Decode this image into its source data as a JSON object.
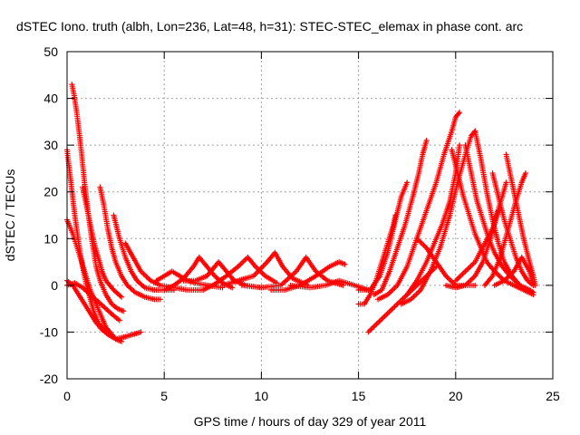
{
  "chart_data": {
    "type": "scatter",
    "title": "dSTEC Iono. truth (albh, Lon=236, Lat=48, h=31): STEC-STEC_elemax in phase cont. arc",
    "xlabel": "GPS time / hours of day 329 of year 2011",
    "ylabel": "dSTEC  / TECUs",
    "xlim": [
      0,
      25
    ],
    "ylim": [
      -20,
      50
    ],
    "xticks": [
      0,
      5,
      10,
      15,
      20,
      25
    ],
    "yticks": [
      -20,
      -10,
      0,
      10,
      20,
      30,
      40,
      50
    ],
    "xtick_labels": [
      "0",
      "5",
      "10",
      "15",
      "20",
      "25"
    ],
    "ytick_labels": [
      "-20",
      "-10",
      "0",
      "10",
      "20",
      "30",
      "40",
      "50"
    ],
    "grid": true,
    "marker": "+",
    "color": "#ff0000",
    "series": [
      {
        "points": [
          [
            0.0,
            29
          ],
          [
            0.2,
            22
          ],
          [
            0.4,
            15
          ],
          [
            0.6,
            9
          ],
          [
            0.8,
            4
          ],
          [
            1.0,
            0
          ],
          [
            1.2,
            -3
          ],
          [
            1.4,
            -6
          ],
          [
            1.6,
            -8
          ],
          [
            1.8,
            -9
          ],
          [
            2.0,
            -10
          ]
        ]
      },
      {
        "points": [
          [
            0.25,
            43
          ],
          [
            0.35,
            41
          ],
          [
            0.5,
            37
          ],
          [
            0.7,
            30
          ],
          [
            0.9,
            22
          ],
          [
            1.1,
            15
          ],
          [
            1.3,
            9
          ],
          [
            1.5,
            4
          ],
          [
            1.7,
            1
          ],
          [
            2.0,
            -2
          ],
          [
            2.3,
            -4
          ],
          [
            2.6,
            -5
          ],
          [
            2.9,
            -5.5
          ]
        ]
      },
      {
        "points": [
          [
            0.0,
            14
          ],
          [
            0.3,
            11
          ],
          [
            0.6,
            7
          ],
          [
            0.9,
            3
          ],
          [
            1.2,
            -1
          ],
          [
            1.5,
            -4
          ],
          [
            1.8,
            -7
          ],
          [
            2.0,
            -9
          ],
          [
            2.2,
            -10
          ],
          [
            2.5,
            -11.5
          ],
          [
            2.8,
            -12
          ]
        ]
      },
      {
        "points": [
          [
            0.0,
            1
          ],
          [
            0.3,
            0
          ],
          [
            0.6,
            -2
          ],
          [
            0.9,
            -4
          ],
          [
            1.2,
            -6
          ],
          [
            1.5,
            -8
          ],
          [
            1.8,
            -9.5
          ],
          [
            2.1,
            -10.5
          ],
          [
            2.5,
            -11.5
          ],
          [
            3.0,
            -11
          ],
          [
            3.4,
            -10.5
          ],
          [
            3.8,
            -10
          ]
        ]
      },
      {
        "points": [
          [
            0.0,
            0
          ],
          [
            0.4,
            0.5
          ],
          [
            0.8,
            -0.5
          ],
          [
            1.2,
            -2
          ],
          [
            1.6,
            -3.5
          ],
          [
            2.0,
            -5
          ],
          [
            2.4,
            -6.5
          ],
          [
            2.7,
            -7.5
          ]
        ]
      },
      {
        "points": [
          [
            0.8,
            21
          ],
          [
            1.0,
            17
          ],
          [
            1.2,
            13
          ],
          [
            1.4,
            9
          ],
          [
            1.6,
            6
          ],
          [
            1.8,
            3
          ],
          [
            2.0,
            1
          ],
          [
            2.4,
            -1
          ],
          [
            2.8,
            -2.5
          ]
        ]
      },
      {
        "points": [
          [
            1.7,
            21
          ],
          [
            1.9,
            17
          ],
          [
            2.1,
            12
          ],
          [
            2.3,
            8
          ],
          [
            2.5,
            5
          ],
          [
            2.8,
            2
          ],
          [
            3.1,
            0
          ],
          [
            3.5,
            -1.5
          ],
          [
            4.0,
            -2.5
          ],
          [
            4.5,
            -3
          ],
          [
            4.8,
            -3
          ]
        ]
      },
      {
        "points": [
          [
            2.4,
            15
          ],
          [
            2.7,
            10
          ],
          [
            3.0,
            6
          ],
          [
            3.3,
            3
          ],
          [
            3.6,
            1
          ],
          [
            4.0,
            -0.5
          ],
          [
            4.5,
            -1
          ],
          [
            5.0,
            -1
          ],
          [
            5.5,
            -1
          ]
        ]
      },
      {
        "points": [
          [
            3.0,
            9
          ],
          [
            3.4,
            6
          ],
          [
            3.8,
            3
          ],
          [
            4.3,
            1
          ],
          [
            4.8,
            0
          ],
          [
            5.5,
            -0.5
          ],
          [
            6.2,
            -1
          ],
          [
            7.0,
            -1
          ]
        ]
      },
      {
        "points": [
          [
            4.6,
            1
          ],
          [
            5.0,
            2
          ],
          [
            5.4,
            3
          ],
          [
            5.8,
            2
          ],
          [
            6.2,
            1
          ],
          [
            6.6,
            0.5
          ],
          [
            7.2,
            0
          ],
          [
            8.0,
            -0.5
          ]
        ]
      },
      {
        "points": [
          [
            5.0,
            -1
          ],
          [
            5.5,
            0
          ],
          [
            6.0,
            1.5
          ],
          [
            6.5,
            4
          ],
          [
            6.8,
            6
          ],
          [
            7.2,
            4
          ],
          [
            7.6,
            2
          ],
          [
            8.0,
            0.5
          ],
          [
            8.5,
            -0.5
          ]
        ]
      },
      {
        "points": [
          [
            6.0,
            1
          ],
          [
            6.6,
            1
          ],
          [
            7.2,
            2
          ],
          [
            7.8,
            5
          ],
          [
            8.2,
            3
          ],
          [
            8.6,
            1
          ],
          [
            9.2,
            0
          ],
          [
            10.0,
            -0.5
          ]
        ]
      },
      {
        "points": [
          [
            7.0,
            -1
          ],
          [
            7.5,
            0
          ],
          [
            8.2,
            2
          ],
          [
            8.8,
            4
          ],
          [
            9.3,
            6
          ],
          [
            9.7,
            4
          ],
          [
            10.2,
            2
          ],
          [
            10.8,
            0.5
          ]
        ]
      },
      {
        "points": [
          [
            8.0,
            0
          ],
          [
            8.8,
            1
          ],
          [
            9.6,
            2
          ],
          [
            10.3,
            5
          ],
          [
            10.7,
            7
          ],
          [
            11.1,
            4
          ],
          [
            11.6,
            1.5
          ],
          [
            12.4,
            0
          ]
        ]
      },
      {
        "points": [
          [
            9.0,
            0
          ],
          [
            10.0,
            -0.5
          ],
          [
            11.0,
            0
          ],
          [
            11.8,
            3
          ],
          [
            12.3,
            6
          ],
          [
            12.8,
            3
          ],
          [
            13.4,
            1
          ],
          [
            14.2,
            0
          ]
        ]
      },
      {
        "points": [
          [
            10.5,
            -1
          ],
          [
            11.2,
            -1
          ],
          [
            12.0,
            0
          ],
          [
            12.8,
            2
          ],
          [
            13.5,
            4
          ],
          [
            14.0,
            5
          ],
          [
            14.3,
            4.5
          ]
        ]
      },
      {
        "points": [
          [
            11.5,
            0
          ],
          [
            12.5,
            -0.5
          ],
          [
            13.3,
            0
          ],
          [
            14.0,
            1
          ],
          [
            14.8,
            0
          ],
          [
            15.5,
            -1
          ]
        ]
      },
      {
        "points": [
          [
            15.0,
            -4
          ],
          [
            15.3,
            -4
          ],
          [
            15.6,
            -2
          ],
          [
            15.9,
            1
          ],
          [
            16.2,
            5
          ],
          [
            16.5,
            9
          ],
          [
            16.8,
            13
          ],
          [
            16.9,
            15
          ]
        ]
      },
      {
        "points": [
          [
            15.5,
            -10
          ],
          [
            16.0,
            -8
          ],
          [
            16.5,
            -6
          ],
          [
            17.0,
            -4
          ],
          [
            17.5,
            -2
          ],
          [
            18.0,
            0
          ],
          [
            18.5,
            2
          ],
          [
            19.0,
            4
          ]
        ]
      },
      {
        "points": [
          [
            15.0,
            -1
          ],
          [
            15.6,
            -1
          ],
          [
            16.1,
            2
          ],
          [
            16.5,
            7
          ],
          [
            16.9,
            14
          ],
          [
            17.2,
            19
          ],
          [
            17.5,
            22
          ]
        ]
      },
      {
        "points": [
          [
            15.8,
            -2
          ],
          [
            16.2,
            -1
          ],
          [
            16.6,
            3
          ],
          [
            17.0,
            8
          ],
          [
            17.4,
            13
          ],
          [
            17.8,
            19
          ],
          [
            18.1,
            24
          ],
          [
            18.3,
            28
          ],
          [
            18.5,
            31
          ]
        ]
      },
      {
        "points": [
          [
            16.0,
            -3
          ],
          [
            16.5,
            -2
          ],
          [
            17.0,
            0
          ],
          [
            17.5,
            4
          ],
          [
            18.0,
            10
          ],
          [
            18.5,
            16
          ],
          [
            19.0,
            22
          ],
          [
            19.4,
            28
          ],
          [
            19.8,
            33
          ],
          [
            20.0,
            36
          ],
          [
            20.2,
            37
          ]
        ]
      },
      {
        "points": [
          [
            17.2,
            -4
          ],
          [
            17.7,
            -3
          ],
          [
            18.2,
            -1
          ],
          [
            18.7,
            3
          ],
          [
            19.2,
            8
          ],
          [
            19.7,
            15
          ],
          [
            20.1,
            22
          ],
          [
            20.5,
            28
          ],
          [
            20.8,
            32
          ],
          [
            21.0,
            33
          ]
        ]
      },
      {
        "points": [
          [
            17.5,
            -2
          ],
          [
            18.0,
            1
          ],
          [
            18.5,
            5
          ],
          [
            18.9,
            9
          ],
          [
            19.3,
            13
          ],
          [
            19.7,
            18
          ],
          [
            20.0,
            24
          ],
          [
            20.2,
            30
          ]
        ]
      },
      {
        "points": [
          [
            18.0,
            10
          ],
          [
            18.5,
            8
          ],
          [
            19.0,
            5
          ],
          [
            19.5,
            2
          ],
          [
            20.0,
            0
          ],
          [
            20.5,
            0
          ],
          [
            21.0,
            0
          ]
        ]
      },
      {
        "points": [
          [
            19.5,
            0
          ],
          [
            20.0,
            -0.5
          ],
          [
            20.5,
            0
          ],
          [
            21.0,
            2
          ],
          [
            21.4,
            5
          ],
          [
            21.8,
            10
          ],
          [
            22.1,
            15
          ],
          [
            22.4,
            19
          ],
          [
            22.6,
            22
          ]
        ]
      },
      {
        "points": [
          [
            19.8,
            29
          ],
          [
            20.1,
            24
          ],
          [
            20.4,
            19
          ],
          [
            20.7,
            15
          ],
          [
            21.0,
            11
          ],
          [
            21.3,
            8
          ],
          [
            21.6,
            5
          ],
          [
            22.0,
            3
          ],
          [
            22.5,
            1
          ],
          [
            23.0,
            0
          ],
          [
            23.5,
            -1
          ],
          [
            24.0,
            -2
          ]
        ]
      },
      {
        "points": [
          [
            20.5,
            30
          ],
          [
            20.8,
            24
          ],
          [
            21.1,
            18
          ],
          [
            21.4,
            14
          ],
          [
            21.7,
            10
          ],
          [
            22.0,
            7
          ],
          [
            22.4,
            4
          ],
          [
            22.8,
            2
          ],
          [
            23.3,
            0
          ],
          [
            23.8,
            -1
          ],
          [
            24.0,
            -1.5
          ]
        ]
      },
      {
        "points": [
          [
            21.0,
            33
          ],
          [
            21.3,
            27
          ],
          [
            21.6,
            20
          ],
          [
            21.9,
            14
          ],
          [
            22.2,
            9
          ],
          [
            22.5,
            5
          ],
          [
            22.9,
            2
          ],
          [
            23.3,
            0
          ],
          [
            23.7,
            -1
          ]
        ]
      },
      {
        "points": [
          [
            21.9,
            24
          ],
          [
            22.2,
            19
          ],
          [
            22.5,
            14
          ],
          [
            22.8,
            10
          ],
          [
            23.1,
            6
          ],
          [
            23.4,
            3
          ],
          [
            23.7,
            1
          ],
          [
            24.0,
            0
          ]
        ]
      },
      {
        "points": [
          [
            21.5,
            0
          ],
          [
            21.9,
            2
          ],
          [
            22.3,
            6
          ],
          [
            22.7,
            12
          ],
          [
            23.1,
            18
          ],
          [
            23.4,
            22
          ],
          [
            23.6,
            24
          ]
        ]
      },
      {
        "points": [
          [
            22.6,
            28
          ],
          [
            22.9,
            22
          ],
          [
            23.2,
            16
          ],
          [
            23.5,
            10
          ],
          [
            23.8,
            5
          ],
          [
            24.0,
            2
          ],
          [
            24.1,
            0
          ]
        ]
      },
      {
        "points": [
          [
            22.0,
            0
          ],
          [
            22.5,
            1
          ],
          [
            23.0,
            3
          ],
          [
            23.4,
            6
          ],
          [
            23.8,
            3
          ],
          [
            24.0,
            0
          ]
        ]
      },
      {
        "points": [
          [
            20.0,
            1
          ],
          [
            20.5,
            3
          ],
          [
            21.0,
            5
          ],
          [
            21.5,
            9
          ],
          [
            22.0,
            13
          ],
          [
            22.2,
            16
          ]
        ]
      }
    ]
  }
}
